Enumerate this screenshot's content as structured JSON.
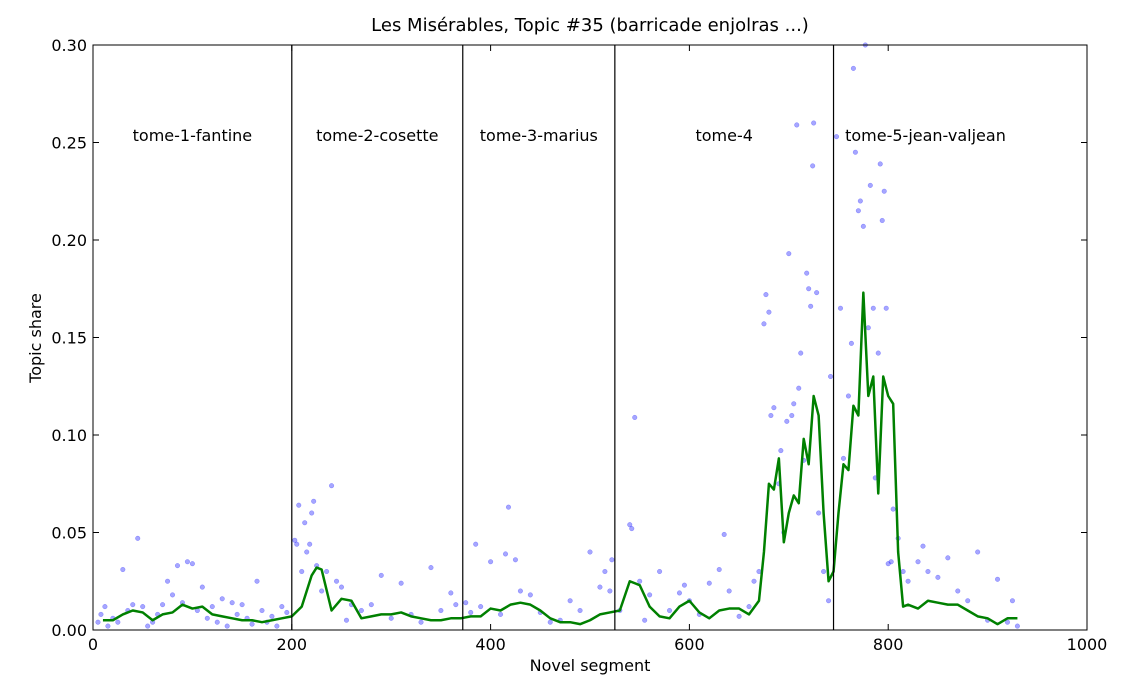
{
  "chart_data": {
    "type": "scatter",
    "title": "Les Misérables, Topic #35 (barricade enjolras ...)",
    "x_label": "Novel segment",
    "y_label": "Topic share",
    "xlim": [
      0,
      1000
    ],
    "ylim": [
      0,
      0.3
    ],
    "xticks": [
      0,
      200,
      400,
      600,
      800,
      1000
    ],
    "yticks": [
      {
        "value": 0,
        "label": "0.00"
      },
      {
        "value": 0.05,
        "label": "0.05"
      },
      {
        "value": 0.1,
        "label": "0.10"
      },
      {
        "value": 0.15,
        "label": "0.15"
      },
      {
        "value": 0.2,
        "label": "0.20"
      },
      {
        "value": 0.25,
        "label": "0.25"
      },
      {
        "value": 0.3,
        "label": "0.30"
      }
    ],
    "sections": [
      {
        "name": "tome-1-fantine",
        "start": 0
      },
      {
        "name": "tome-2-cosette",
        "start": 200
      },
      {
        "name": "tome-3-marius",
        "start": 372
      },
      {
        "name": "tome-4",
        "start": 525
      },
      {
        "name": "tome-5-jean-valjean",
        "start": 745
      }
    ],
    "section_label_y": 0.253,
    "series": [
      {
        "type": "scatter",
        "color": "#0000ff",
        "x": [
          5,
          8,
          12,
          15,
          20,
          25,
          30,
          35,
          40,
          45,
          50,
          55,
          60,
          65,
          70,
          75,
          80,
          85,
          90,
          95,
          100,
          105,
          110,
          115,
          120,
          125,
          130,
          135,
          140,
          145,
          150,
          155,
          160,
          165,
          170,
          175,
          180,
          185,
          190,
          195,
          203,
          205,
          207,
          210,
          213,
          215,
          218,
          220,
          222,
          225,
          230,
          235,
          240,
          245,
          250,
          255,
          260,
          270,
          280,
          290,
          300,
          310,
          320,
          330,
          340,
          350,
          360,
          365,
          375,
          380,
          385,
          390,
          400,
          410,
          415,
          418,
          425,
          430,
          440,
          450,
          460,
          470,
          480,
          490,
          500,
          510,
          515,
          520,
          522,
          530,
          540,
          542,
          545,
          550,
          555,
          560,
          570,
          580,
          590,
          595,
          600,
          610,
          620,
          630,
          635,
          640,
          650,
          660,
          665,
          670,
          675,
          677,
          680,
          682,
          685,
          690,
          692,
          695,
          698,
          700,
          703,
          705,
          708,
          710,
          712,
          715,
          718,
          720,
          722,
          724,
          725,
          728,
          730,
          735,
          740,
          742,
          748,
          752,
          755,
          760,
          763,
          765,
          767,
          770,
          772,
          775,
          777,
          780,
          782,
          785,
          787,
          790,
          792,
          794,
          796,
          798,
          800,
          803,
          805,
          810,
          815,
          820,
          830,
          835,
          840,
          850,
          860,
          870,
          880,
          890,
          900,
          910,
          920,
          925,
          930
        ],
        "y": [
          0.004,
          0.008,
          0.012,
          0.002,
          0.006,
          0.004,
          0.031,
          0.01,
          0.013,
          0.047,
          0.012,
          0.002,
          0.004,
          0.008,
          0.013,
          0.025,
          0.018,
          0.033,
          0.014,
          0.035,
          0.034,
          0.01,
          0.022,
          0.006,
          0.012,
          0.004,
          0.016,
          0.002,
          0.014,
          0.008,
          0.013,
          0.006,
          0.003,
          0.025,
          0.01,
          0.004,
          0.007,
          0.002,
          0.012,
          0.009,
          0.046,
          0.044,
          0.064,
          0.03,
          0.055,
          0.04,
          0.044,
          0.06,
          0.066,
          0.033,
          0.02,
          0.03,
          0.074,
          0.025,
          0.022,
          0.005,
          0.013,
          0.01,
          0.013,
          0.028,
          0.006,
          0.024,
          0.008,
          0.004,
          0.032,
          0.01,
          0.019,
          0.013,
          0.014,
          0.009,
          0.044,
          0.012,
          0.035,
          0.008,
          0.039,
          0.063,
          0.036,
          0.02,
          0.018,
          0.009,
          0.004,
          0.005,
          0.015,
          0.01,
          0.04,
          0.022,
          0.03,
          0.02,
          0.036,
          0.01,
          0.054,
          0.052,
          0.109,
          0.025,
          0.005,
          0.018,
          0.03,
          0.01,
          0.019,
          0.023,
          0.015,
          0.008,
          0.024,
          0.031,
          0.049,
          0.02,
          0.007,
          0.012,
          0.025,
          0.03,
          0.157,
          0.172,
          0.163,
          0.11,
          0.114,
          0.075,
          0.092,
          0.05,
          0.107,
          0.193,
          0.11,
          0.116,
          0.259,
          0.124,
          0.142,
          0.087,
          0.183,
          0.175,
          0.166,
          0.238,
          0.26,
          0.173,
          0.06,
          0.03,
          0.015,
          0.13,
          0.253,
          0.165,
          0.088,
          0.12,
          0.147,
          0.288,
          0.245,
          0.215,
          0.22,
          0.207,
          0.3,
          0.155,
          0.228,
          0.165,
          0.078,
          0.142,
          0.239,
          0.21,
          0.225,
          0.165,
          0.034,
          0.035,
          0.062,
          0.047,
          0.03,
          0.025,
          0.035,
          0.043,
          0.03,
          0.027,
          0.037,
          0.02,
          0.015,
          0.04,
          0.005,
          0.026,
          0.004,
          0.015,
          0.002
        ]
      },
      {
        "type": "line",
        "color": "#008000",
        "x": [
          10,
          20,
          30,
          40,
          50,
          60,
          70,
          80,
          90,
          100,
          110,
          120,
          130,
          140,
          150,
          160,
          170,
          180,
          190,
          200,
          210,
          220,
          225,
          230,
          240,
          250,
          260,
          270,
          280,
          290,
          300,
          310,
          320,
          330,
          340,
          350,
          360,
          370,
          380,
          390,
          400,
          410,
          420,
          430,
          440,
          450,
          460,
          470,
          480,
          490,
          500,
          510,
          520,
          530,
          540,
          550,
          560,
          570,
          580,
          590,
          600,
          610,
          620,
          630,
          640,
          650,
          660,
          670,
          675,
          680,
          685,
          690,
          695,
          700,
          705,
          710,
          715,
          720,
          725,
          730,
          735,
          740,
          745,
          750,
          755,
          760,
          765,
          770,
          775,
          780,
          785,
          790,
          795,
          800,
          805,
          810,
          815,
          820,
          830,
          840,
          850,
          860,
          870,
          880,
          890,
          900,
          910,
          920,
          930
        ],
        "y": [
          0.005,
          0.005,
          0.008,
          0.01,
          0.009,
          0.005,
          0.008,
          0.009,
          0.013,
          0.011,
          0.012,
          0.008,
          0.007,
          0.006,
          0.005,
          0.005,
          0.004,
          0.005,
          0.006,
          0.007,
          0.012,
          0.028,
          0.032,
          0.031,
          0.01,
          0.016,
          0.015,
          0.006,
          0.007,
          0.008,
          0.008,
          0.009,
          0.007,
          0.006,
          0.005,
          0.005,
          0.006,
          0.006,
          0.007,
          0.007,
          0.011,
          0.01,
          0.013,
          0.014,
          0.013,
          0.01,
          0.006,
          0.004,
          0.004,
          0.003,
          0.005,
          0.008,
          0.009,
          0.01,
          0.025,
          0.023,
          0.012,
          0.007,
          0.006,
          0.012,
          0.015,
          0.009,
          0.006,
          0.01,
          0.011,
          0.011,
          0.008,
          0.015,
          0.04,
          0.075,
          0.072,
          0.088,
          0.045,
          0.06,
          0.069,
          0.065,
          0.098,
          0.085,
          0.12,
          0.11,
          0.06,
          0.025,
          0.03,
          0.06,
          0.085,
          0.082,
          0.115,
          0.11,
          0.173,
          0.12,
          0.13,
          0.07,
          0.13,
          0.12,
          0.116,
          0.04,
          0.012,
          0.013,
          0.011,
          0.015,
          0.014,
          0.013,
          0.013,
          0.01,
          0.007,
          0.006,
          0.003,
          0.006,
          0.006
        ]
      }
    ]
  }
}
